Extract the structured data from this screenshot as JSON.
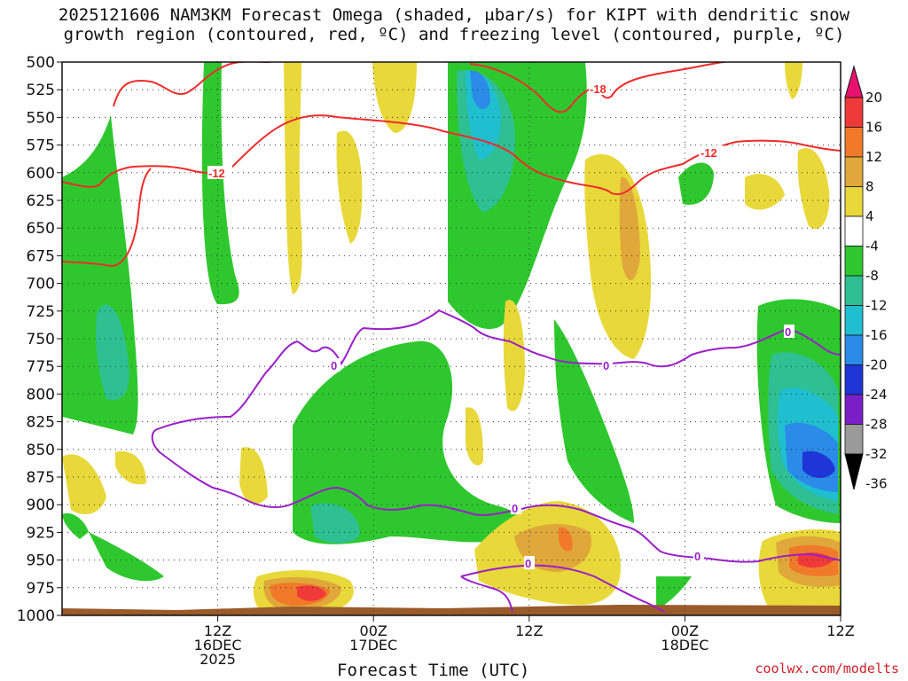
{
  "title_line1": "2025121606 NAM3KM Forecast Omega (shaded, μbar/s) for KIPT with dendritic snow",
  "title_line2": "growth region (contoured, red, ºC) and freezing level (contoured, purple, ºC)",
  "footer": "coolwx.com/modelts",
  "chart_data": {
    "type": "heatmap",
    "title": "2025121606 NAM3KM Forecast Omega (shaded, μbar/s) for KIPT with dendritic snow growth region (contoured, red, ºC) and freezing level (contoured, purple, ºC)",
    "xlabel": "Forecast Time (UTC)",
    "ylabel": "",
    "y_axis": {
      "labels": [
        "500",
        "525",
        "550",
        "575",
        "600",
        "625",
        "650",
        "675",
        "700",
        "725",
        "750",
        "775",
        "800",
        "825",
        "850",
        "875",
        "900",
        "925",
        "950",
        "975",
        "1000"
      ],
      "range": [
        1000,
        500
      ],
      "unit": "hPa"
    },
    "x_axis": {
      "range_hours": [
        6,
        36
      ],
      "ticks": [
        {
          "hour": 12,
          "labels": [
            "12Z",
            "16DEC",
            "2025"
          ]
        },
        {
          "hour": 18,
          "labels": [
            "00Z",
            "17DEC"
          ]
        },
        {
          "hour": 24,
          "labels": [
            "12Z"
          ]
        },
        {
          "hour": 30,
          "labels": [
            "00Z",
            "18DEC"
          ]
        },
        {
          "hour": 36,
          "labels": [
            "12Z"
          ]
        }
      ]
    },
    "grid": true,
    "colorbar": {
      "labels": [
        "20",
        "16",
        "12",
        "8",
        "4",
        "-4",
        "-8",
        "-12",
        "-16",
        "-20",
        "-24",
        "-28",
        "-32",
        "-36"
      ],
      "colors": [
        "#e8116e",
        "#f03a3a",
        "#f07a2a",
        "#e0a83a",
        "#e8d83a",
        "#ffffff",
        "#2ec82e",
        "#2ebf92",
        "#1fbfd0",
        "#2a8be8",
        "#1e36d8",
        "#7a1fc8",
        "#9a9a9a",
        "#000000"
      ]
    },
    "contour_labels": [
      {
        "text": "-18",
        "color": "#ee2c2c"
      },
      {
        "text": "-12",
        "color": "#ee2c2c"
      },
      {
        "text": "-12",
        "color": "#ee2c2c"
      },
      {
        "text": "0",
        "color": "#9a1fc8"
      },
      {
        "text": "0",
        "color": "#9a1fc8"
      },
      {
        "text": "0",
        "color": "#9a1fc8"
      },
      {
        "text": "0",
        "color": "#9a1fc8"
      },
      {
        "text": "0",
        "color": "#9a1fc8"
      },
      {
        "text": "0",
        "color": "#9a1fc8"
      }
    ],
    "series": [
      {
        "name": "dendritic snow growth region",
        "color": "#ee2c2c"
      },
      {
        "name": "freezing level",
        "color": "#9a1fc8"
      }
    ]
  },
  "colors": {
    "ground": "#9a5a2a",
    "dendritic": "#ee2c2c",
    "freezing": "#9a1fc8"
  }
}
